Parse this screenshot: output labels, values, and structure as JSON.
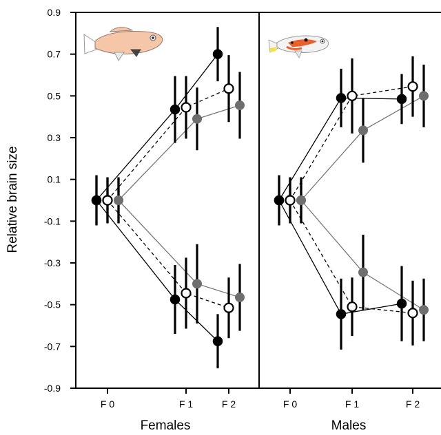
{
  "chart_data": {
    "type": "scatter",
    "ylabel": "Relative brain size",
    "ylim": [
      -0.9,
      0.9
    ],
    "yticks": [
      "0.9",
      "0.7",
      "0.5",
      "0.3",
      "0.1",
      "-0.1",
      "-0.3",
      "-0.5",
      "-0.7",
      "-0.9"
    ],
    "categories": [
      "F 0",
      "F 1",
      "F 2"
    ],
    "panels": [
      {
        "name": "Females",
        "series": [
          {
            "style": "filled-black",
            "color": "#000000",
            "line": "solid",
            "points": [
              {
                "x": "F 0",
                "y": 0.0,
                "err": 0.12
              },
              {
                "x": "F 1",
                "y": 0.435,
                "err": 0.16
              },
              {
                "x": "F 2",
                "y": 0.7,
                "err": 0.13
              }
            ]
          },
          {
            "style": "open-white",
            "color": "#000000",
            "line": "dashed",
            "points": [
              {
                "x": "F 0",
                "y": 0.0,
                "err": 0.11
              },
              {
                "x": "F 1",
                "y": 0.445,
                "err": 0.15
              },
              {
                "x": "F 2",
                "y": 0.535,
                "err": 0.16
              }
            ]
          },
          {
            "style": "filled-gray",
            "color": "#777777",
            "line": "solid",
            "points": [
              {
                "x": "F 0",
                "y": 0.0,
                "err": 0.11
              },
              {
                "x": "F 1",
                "y": 0.39,
                "err": 0.15
              },
              {
                "x": "F 2",
                "y": 0.455,
                "err": 0.16
              }
            ]
          },
          {
            "style": "filled-black",
            "color": "#000000",
            "line": "solid",
            "points": [
              {
                "x": "F 0",
                "y": 0.0,
                "err": 0.12
              },
              {
                "x": "F 1",
                "y": -0.475,
                "err": 0.165
              },
              {
                "x": "F 2",
                "y": -0.675,
                "err": 0.13
              }
            ]
          },
          {
            "style": "open-white",
            "color": "#000000",
            "line": "dashed",
            "points": [
              {
                "x": "F 0",
                "y": 0.0,
                "err": 0.11
              },
              {
                "x": "F 1",
                "y": -0.445,
                "err": 0.17
              },
              {
                "x": "F 2",
                "y": -0.515,
                "err": 0.145
              }
            ]
          },
          {
            "style": "filled-gray",
            "color": "#777777",
            "line": "solid",
            "points": [
              {
                "x": "F 0",
                "y": 0.0,
                "err": 0.11
              },
              {
                "x": "F 1",
                "y": -0.4,
                "err": 0.19
              },
              {
                "x": "F 2",
                "y": -0.465,
                "err": 0.16
              }
            ]
          }
        ]
      },
      {
        "name": "Males",
        "series": [
          {
            "style": "filled-black",
            "color": "#000000",
            "line": "solid",
            "points": [
              {
                "x": "F 0",
                "y": 0.0,
                "err": 0.12
              },
              {
                "x": "F 1",
                "y": 0.49,
                "err": 0.14
              },
              {
                "x": "F 2",
                "y": 0.485,
                "err": 0.12
              }
            ]
          },
          {
            "style": "open-white",
            "color": "#000000",
            "line": "dashed",
            "points": [
              {
                "x": "F 0",
                "y": 0.0,
                "err": 0.11
              },
              {
                "x": "F 1",
                "y": 0.5,
                "err": 0.18
              },
              {
                "x": "F 2",
                "y": 0.545,
                "err": 0.145
              }
            ]
          },
          {
            "style": "filled-gray",
            "color": "#777777",
            "line": "solid",
            "points": [
              {
                "x": "F 0",
                "y": 0.0,
                "err": 0.11
              },
              {
                "x": "F 1",
                "y": 0.335,
                "err": 0.155
              },
              {
                "x": "F 2",
                "y": 0.5,
                "err": 0.15
              }
            ]
          },
          {
            "style": "filled-black",
            "color": "#000000",
            "line": "solid",
            "points": [
              {
                "x": "F 0",
                "y": 0.0,
                "err": 0.12
              },
              {
                "x": "F 1",
                "y": -0.545,
                "err": 0.17
              },
              {
                "x": "F 2",
                "y": -0.495,
                "err": 0.18
              }
            ]
          },
          {
            "style": "open-white",
            "color": "#000000",
            "line": "dashed",
            "points": [
              {
                "x": "F 0",
                "y": 0.0,
                "err": 0.11
              },
              {
                "x": "F 1",
                "y": -0.51,
                "err": 0.14
              },
              {
                "x": "F 2",
                "y": -0.54,
                "err": 0.155
              }
            ]
          },
          {
            "style": "filled-gray",
            "color": "#777777",
            "line": "solid",
            "points": [
              {
                "x": "F 0",
                "y": 0.0,
                "err": 0.11
              },
              {
                "x": "F 1",
                "y": -0.345,
                "err": 0.18
              },
              {
                "x": "F 2",
                "y": -0.525,
                "err": 0.15
              }
            ]
          }
        ]
      }
    ],
    "grid": false,
    "legend": "none",
    "icons": [
      "female-guppy-icon",
      "male-guppy-icon"
    ],
    "colors": {
      "female_fish_body": "#f5c6a8",
      "male_fish_body": "#f3f3f3",
      "male_fish_orange": "#e8612c",
      "male_fish_yellow": "#f4e04a"
    }
  }
}
